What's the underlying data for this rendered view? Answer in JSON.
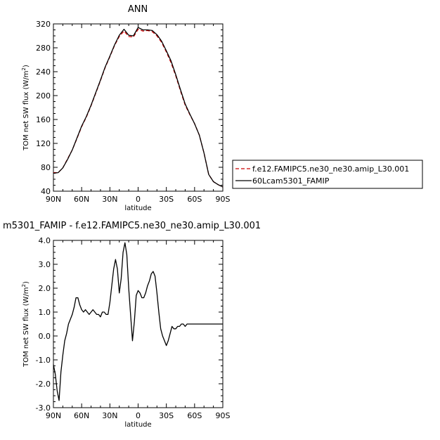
{
  "chart_data": [
    {
      "type": "line",
      "title": "ANN",
      "xlabel": "latitude",
      "ylabel": "TOM net SW flux (W/m²)",
      "ylim": [
        40,
        320
      ],
      "yticks": [
        40,
        80,
        120,
        160,
        200,
        240,
        280,
        320
      ],
      "xlim": [
        90,
        -90
      ],
      "xticks": [
        90,
        60,
        30,
        0,
        -30,
        -60,
        -90
      ],
      "xtick_labels": [
        "90N",
        "60N",
        "30N",
        "0",
        "30S",
        "60S",
        "90S"
      ],
      "grid": false,
      "legend_position": "right",
      "x": [
        90,
        85,
        80,
        75,
        70,
        65,
        60,
        55,
        50,
        45,
        40,
        35,
        30,
        25,
        20,
        15,
        10,
        5,
        0,
        -5,
        -10,
        -15,
        -20,
        -25,
        -30,
        -35,
        -40,
        -45,
        -50,
        -55,
        -60,
        -65,
        -70,
        -75,
        -80,
        -85,
        -90
      ],
      "series": [
        {
          "name": "f.e12.FAMIPC5.ne30_ne30.amip_L30.001",
          "color": "#cc0000",
          "dash": "dashed",
          "values": [
            71,
            71,
            79,
            94,
            109,
            128,
            148,
            164,
            183,
            204,
            225,
            247,
            265,
            284,
            299,
            308,
            299,
            298,
            311,
            308,
            309,
            307,
            300,
            289,
            273,
            255,
            233,
            208,
            184,
            168,
            153,
            134,
            104,
            68,
            56,
            51,
            47
          ]
        },
        {
          "name": "60Lcam5301_FAMIP",
          "color": "#000000",
          "dash": "solid",
          "values": [
            70,
            71,
            79,
            93,
            109,
            129,
            149,
            165,
            184,
            205,
            226,
            248,
            266,
            285,
            301,
            311,
            301,
            300,
            314,
            310,
            310,
            309,
            302,
            291,
            275,
            258,
            235,
            210,
            186,
            169,
            153,
            134,
            104,
            68,
            56,
            51,
            47
          ]
        }
      ]
    },
    {
      "type": "line",
      "title": "m5301_FAMIP - f.e12.FAMIPC5.ne30_ne30.amip_L30.001",
      "xlabel": "latitude",
      "ylabel": "TOM net SW flux (W/m²)",
      "ylim": [
        -3.0,
        4.0
      ],
      "yticks": [
        -3.0,
        -2.0,
        -1.0,
        0.0,
        1.0,
        2.0,
        3.0,
        4.0
      ],
      "ytick_labels": [
        "-3.0",
        "-2.0",
        "-1.0",
        "0.0",
        "1.0",
        "2.0",
        "3.0",
        "4.0"
      ],
      "xlim": [
        90,
        -90
      ],
      "xticks": [
        90,
        60,
        30,
        0,
        -30,
        -60,
        -90
      ],
      "xtick_labels": [
        "90N",
        "60N",
        "30N",
        "0",
        "30S",
        "60S",
        "90S"
      ],
      "grid": false,
      "x": [
        90,
        88,
        86,
        84,
        82,
        80,
        78,
        76,
        74,
        72,
        70,
        68,
        66,
        64,
        62,
        60,
        58,
        56,
        54,
        52,
        50,
        48,
        46,
        44,
        42,
        40,
        38,
        36,
        34,
        32,
        30,
        28,
        26,
        24,
        22,
        20,
        18,
        16,
        14,
        12,
        10,
        8,
        6,
        4,
        2,
        0,
        -2,
        -4,
        -6,
        -8,
        -10,
        -12,
        -14,
        -16,
        -18,
        -20,
        -22,
        -24,
        -26,
        -28,
        -30,
        -32,
        -34,
        -36,
        -38,
        -40,
        -42,
        -44,
        -46,
        -48,
        -50,
        -52,
        -54,
        -56,
        -58,
        -60,
        -62,
        -64,
        -66,
        -68,
        -70,
        -72,
        -74,
        -76,
        -78,
        -80,
        -82,
        -84,
        -86,
        -88,
        -90
      ],
      "series": [
        {
          "name": "",
          "color": "#000000",
          "values": [
            -1.2,
            -1.6,
            -2.3,
            -2.7,
            -1.5,
            -0.8,
            -0.2,
            0.1,
            0.5,
            0.7,
            0.9,
            1.2,
            1.6,
            1.6,
            1.3,
            1.1,
            1.0,
            1.1,
            1.0,
            0.9,
            1.0,
            1.1,
            1.0,
            0.9,
            0.9,
            0.8,
            1.0,
            1.0,
            0.9,
            0.9,
            1.4,
            2.1,
            2.8,
            3.2,
            2.8,
            1.8,
            2.4,
            3.5,
            3.9,
            3.4,
            2.0,
            0.9,
            -0.2,
            0.6,
            1.7,
            1.9,
            1.8,
            1.6,
            1.6,
            1.8,
            2.1,
            2.3,
            2.6,
            2.7,
            2.5,
            1.8,
            1.0,
            0.3,
            0.0,
            -0.2,
            -0.4,
            -0.2,
            0.1,
            0.4,
            0.3,
            0.3,
            0.4,
            0.4,
            0.5,
            0.5,
            0.4,
            0.5,
            0.5,
            0.5,
            0.5,
            0.5,
            0.5,
            0.5,
            0.5,
            0.5,
            0.5,
            0.5,
            0.5,
            0.5,
            0.5,
            0.5,
            0.5,
            0.5,
            0.5,
            0.5,
            0.5
          ]
        }
      ]
    }
  ]
}
